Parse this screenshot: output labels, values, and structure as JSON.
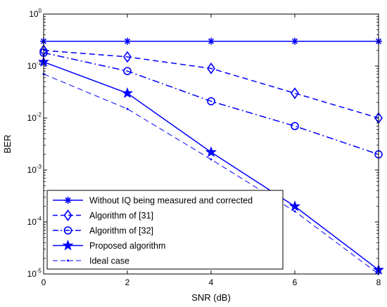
{
  "chart_data": {
    "type": "line",
    "title": "",
    "xlabel": "SNR (dB)",
    "ylabel": "BER",
    "xlim": [
      0,
      8
    ],
    "ylim": [
      1e-05,
      1
    ],
    "yscale": "log",
    "grid": false,
    "legend_position": "bottom-left",
    "x_ticks": [
      "0",
      "2",
      "4",
      "6",
      "8"
    ],
    "y_ticks": [
      {
        "value": 1,
        "base": "10",
        "exp": "0"
      },
      {
        "value": 0.1,
        "base": "10",
        "exp": "-1"
      },
      {
        "value": 0.01,
        "base": "10",
        "exp": "-2"
      },
      {
        "value": 0.001,
        "base": "10",
        "exp": "-3"
      },
      {
        "value": 0.0001,
        "base": "10",
        "exp": "-4"
      },
      {
        "value": 1e-05,
        "base": "10",
        "exp": "-5"
      }
    ],
    "series": [
      {
        "name": "Without IQ being measured and corrected",
        "color": "#0000ff",
        "dash": "solid",
        "marker": "asterisk",
        "x": [
          0,
          2,
          4,
          6,
          8
        ],
        "y": [
          0.3,
          0.3,
          0.3,
          0.3,
          0.3
        ]
      },
      {
        "name": "Algorithm of [31]",
        "color": "#0000ff",
        "dash": "dashed",
        "marker": "diamond",
        "x": [
          0,
          2,
          4,
          6,
          8
        ],
        "y": [
          0.2,
          0.15,
          0.09,
          0.03,
          0.01
        ]
      },
      {
        "name": "Algorithm of [32]",
        "color": "#0000ff",
        "dash": "dashdot",
        "marker": "circle",
        "x": [
          0,
          2,
          4,
          6,
          8
        ],
        "y": [
          0.18,
          0.08,
          0.021,
          0.007,
          0.002
        ]
      },
      {
        "name": "Proposed algorithm",
        "color": "#0000ff",
        "dash": "solid",
        "marker": "star",
        "x": [
          0,
          2,
          4,
          6,
          8
        ],
        "y": [
          0.12,
          0.03,
          0.0022,
          0.0002,
          1.2e-05
        ]
      },
      {
        "name": "Ideal case",
        "color": "#0000ff",
        "dash": "dashed-thin",
        "marker": "point",
        "x": [
          0,
          2,
          4,
          6,
          8
        ],
        "y": [
          0.07,
          0.015,
          0.0016,
          0.00016,
          1e-05
        ]
      }
    ]
  }
}
